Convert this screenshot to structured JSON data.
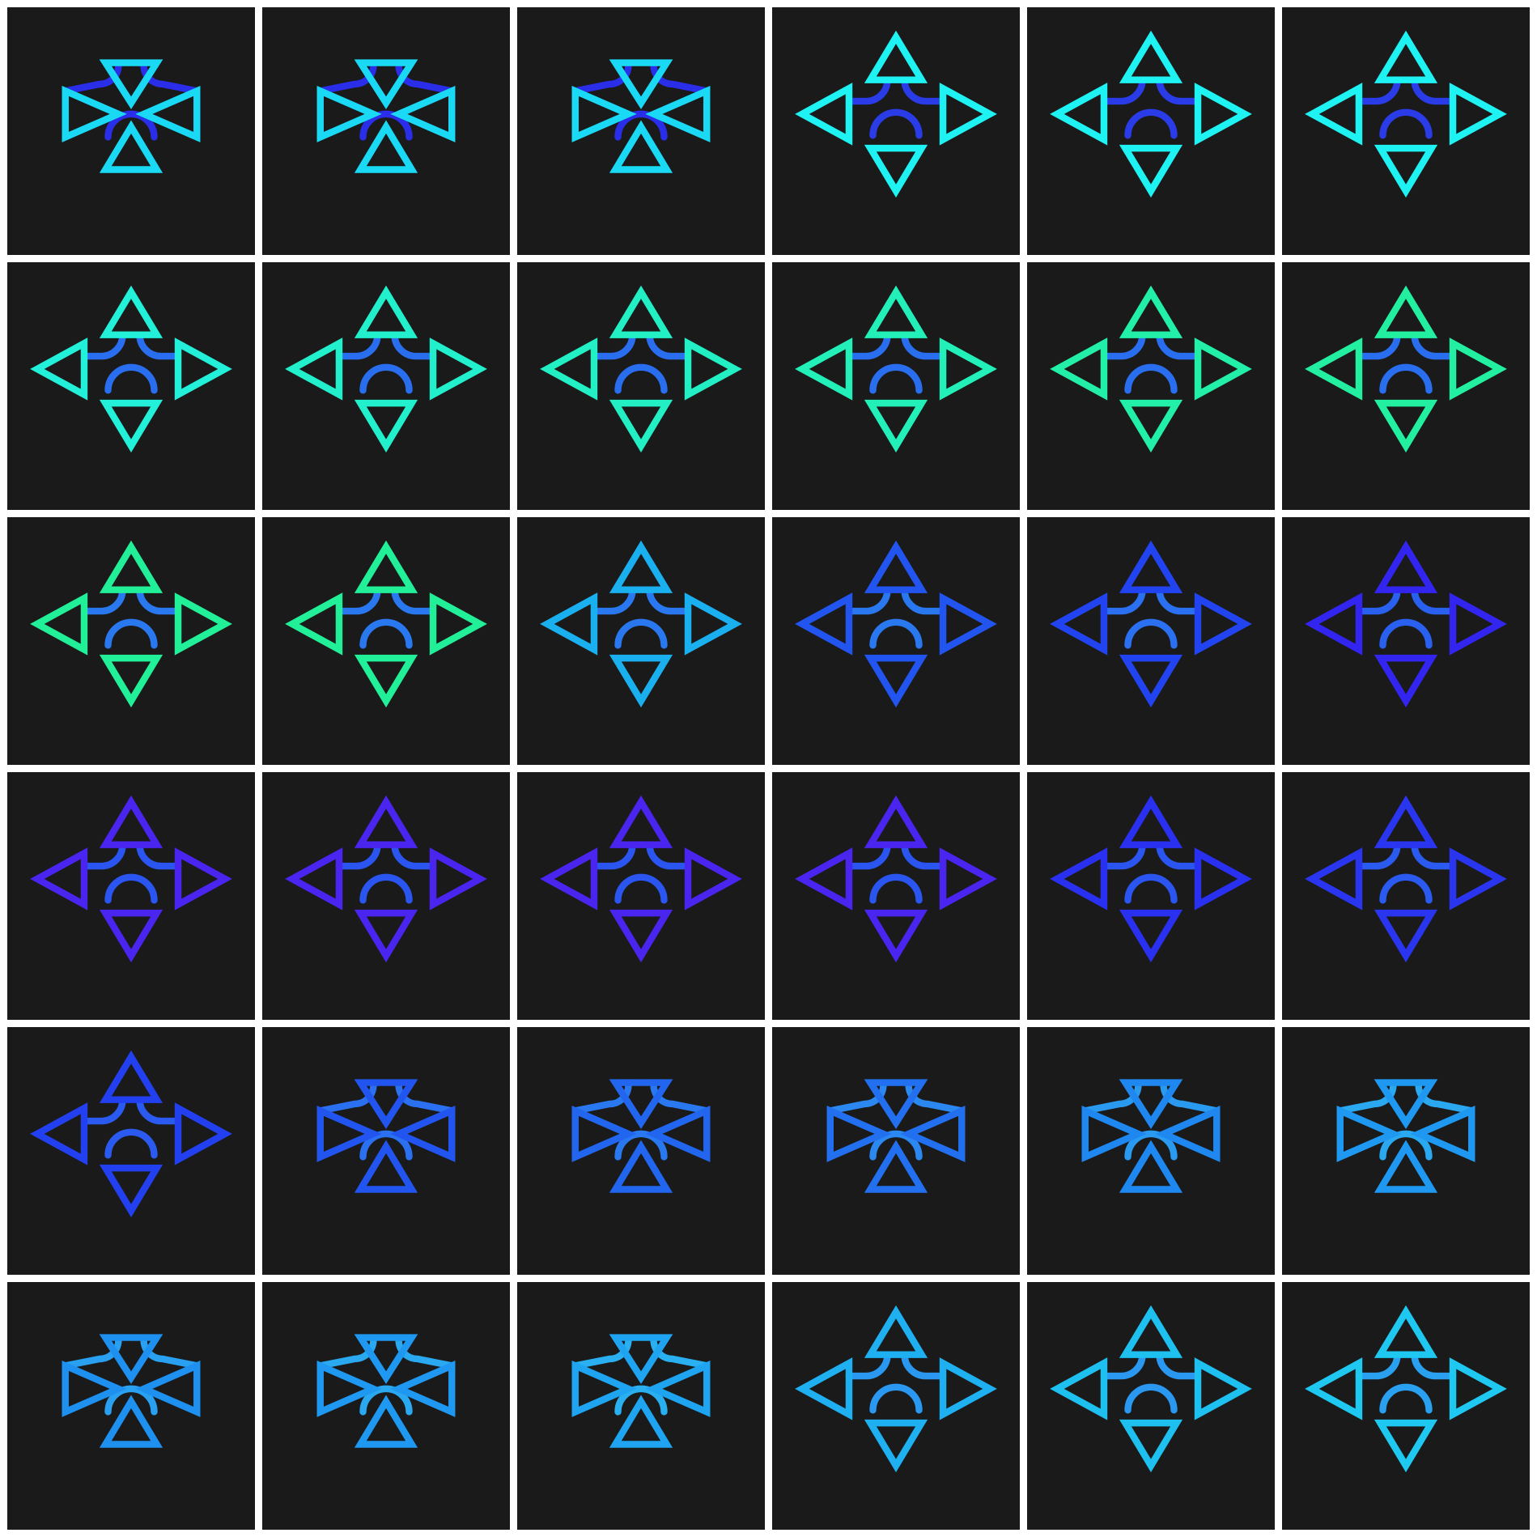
{
  "grid": {
    "rows": 6,
    "cols": 6
  },
  "tiles": [
    {
      "state": "inward",
      "triangle_color": "#1ad9f5",
      "arc_color": "#2a2ee8"
    },
    {
      "state": "inward",
      "triangle_color": "#1ad9f5",
      "arc_color": "#2a2ee8"
    },
    {
      "state": "inward",
      "triangle_color": "#1ad9f5",
      "arc_color": "#2a2ee8"
    },
    {
      "state": "outward",
      "triangle_color": "#1ef2f2",
      "arc_color": "#2a3be8"
    },
    {
      "state": "outward",
      "triangle_color": "#1ef2f2",
      "arc_color": "#2a3be8"
    },
    {
      "state": "outward",
      "triangle_color": "#1ef2f2",
      "arc_color": "#2a3be8"
    },
    {
      "state": "outward",
      "triangle_color": "#22f0d8",
      "arc_color": "#2a6ef0"
    },
    {
      "state": "outward",
      "triangle_color": "#22f0cc",
      "arc_color": "#2a6ef0"
    },
    {
      "state": "outward",
      "triangle_color": "#22f0c4",
      "arc_color": "#2a6ef0"
    },
    {
      "state": "outward",
      "triangle_color": "#22f0b8",
      "arc_color": "#2a6ef0"
    },
    {
      "state": "outward",
      "triangle_color": "#22f0a8",
      "arc_color": "#2a6ef0"
    },
    {
      "state": "outward",
      "triangle_color": "#22f0a0",
      "arc_color": "#2a6ef0"
    },
    {
      "state": "outward",
      "triangle_color": "#22f098",
      "arc_color": "#2a78f0"
    },
    {
      "state": "outward",
      "triangle_color": "#22f098",
      "arc_color": "#2a78f0"
    },
    {
      "state": "outward",
      "triangle_color": "#1ab0f0",
      "arc_color": "#2a78f0"
    },
    {
      "state": "outward",
      "triangle_color": "#2255f0",
      "arc_color": "#2a78f0"
    },
    {
      "state": "outward",
      "triangle_color": "#2244f0",
      "arc_color": "#2a70f0"
    },
    {
      "state": "outward",
      "triangle_color": "#3325f0",
      "arc_color": "#2a60f0"
    },
    {
      "state": "outward",
      "triangle_color": "#4a25f0",
      "arc_color": "#2a55f0"
    },
    {
      "state": "outward",
      "triangle_color": "#4a25f0",
      "arc_color": "#2a55f0"
    },
    {
      "state": "outward",
      "triangle_color": "#4a25f0",
      "arc_color": "#2a55f0"
    },
    {
      "state": "outward",
      "triangle_color": "#4a25f0",
      "arc_color": "#2a55f0"
    },
    {
      "state": "outward",
      "triangle_color": "#2a30f0",
      "arc_color": "#2a55f0"
    },
    {
      "state": "outward",
      "triangle_color": "#2a35f0",
      "arc_color": "#2a5af0"
    },
    {
      "state": "outward",
      "triangle_color": "#2240f0",
      "arc_color": "#2a5af0"
    },
    {
      "state": "inward",
      "triangle_color": "#2255f0",
      "arc_color": "#2a70f0"
    },
    {
      "state": "inward",
      "triangle_color": "#2266f0",
      "arc_color": "#2a78f0"
    },
    {
      "state": "inward",
      "triangle_color": "#2270f0",
      "arc_color": "#2a88f0"
    },
    {
      "state": "inward",
      "triangle_color": "#1e88f0",
      "arc_color": "#2a9af0"
    },
    {
      "state": "inward",
      "triangle_color": "#1e98f0",
      "arc_color": "#2aa8f0"
    },
    {
      "state": "inward",
      "triangle_color": "#1e90f0",
      "arc_color": "#2aa0f0"
    },
    {
      "state": "inward",
      "triangle_color": "#1e98f0",
      "arc_color": "#2aa8f0"
    },
    {
      "state": "inward",
      "triangle_color": "#1ea4f0",
      "arc_color": "#2ab0f0"
    },
    {
      "state": "outward",
      "triangle_color": "#1eb0f0",
      "arc_color": "#2a98f0"
    },
    {
      "state": "outward",
      "triangle_color": "#1ec0f0",
      "arc_color": "#2a98f0"
    },
    {
      "state": "outward",
      "triangle_color": "#1ec8f0",
      "arc_color": "#2aa0f0"
    }
  ]
}
